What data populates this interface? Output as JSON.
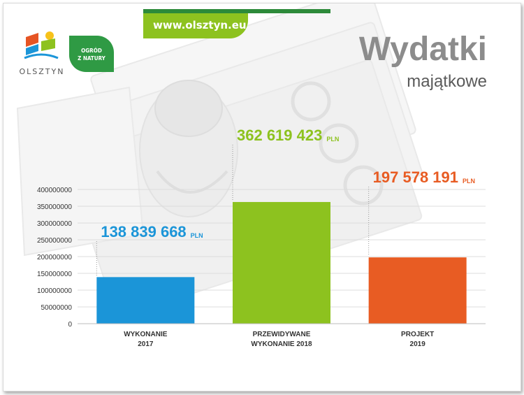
{
  "header": {
    "url": "www.olsztyn.eu",
    "logo_olsztyn": "OLSZTYN",
    "logo_ogrod_line1": "OGRÓD",
    "logo_ogrod_line2": "Z NATURY",
    "title": "Wydatki",
    "subtitle": "majątkowe"
  },
  "colors": {
    "accent_green": "#8dc21f",
    "dark_green": "#2d8a3a",
    "bar_2017": "#1b95d8",
    "bar_2018": "#8dc21f",
    "bar_2019": "#e85c23"
  },
  "chart_data": {
    "type": "bar",
    "categories": [
      [
        "WYKONANIE",
        "2017"
      ],
      [
        "PRZEWIDYWANE",
        "WYKONANIE 2018"
      ],
      [
        "PROJEKT",
        "2019"
      ]
    ],
    "values": [
      138839668,
      362619423,
      197578191
    ],
    "value_labels": [
      "138 839 668",
      "362 619 423",
      "197 578 191"
    ],
    "unit_label": "PLN",
    "ylim": [
      0,
      400000000
    ],
    "yticks": [
      "0",
      "50000000",
      "100000000",
      "150000000",
      "200000000",
      "250000000",
      "300000000",
      "350000000",
      "400000000"
    ],
    "grid": true,
    "legend": "none"
  }
}
